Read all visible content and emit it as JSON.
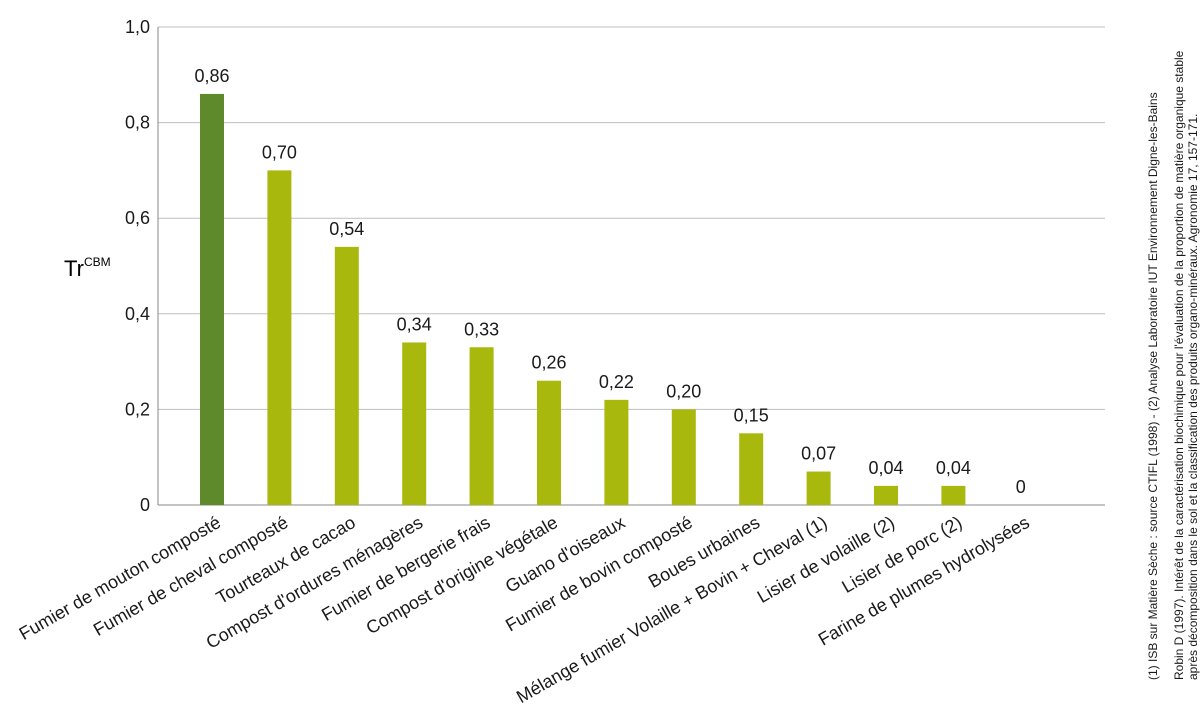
{
  "chart_data": {
    "type": "bar",
    "ylabel_main": "Tr",
    "ylabel_sup": "CBM",
    "ylim": [
      0,
      1.0
    ],
    "yticks": [
      "0",
      "0,2",
      "0,4",
      "0,6",
      "0,8",
      "1,0"
    ],
    "grid": true,
    "categories": [
      "Fumier de mouton composté",
      "Fumier de cheval composté",
      "Tourteaux de cacao",
      "Compost d'ordures ménagères",
      "Fumier de bergerie frais",
      "Compost d'origine végétale",
      "Guano d'oiseaux",
      "Fumier de bovin composté",
      "Boues urbaines",
      "Mélange fumier Volaille + Bovin + Cheval (1)",
      "Lisier de volaille (2)",
      "Lisier de porc (2)",
      "Farine de plumes hydrolysées"
    ],
    "values": [
      0.86,
      0.7,
      0.54,
      0.34,
      0.33,
      0.26,
      0.22,
      0.2,
      0.15,
      0.07,
      0.04,
      0.04,
      0
    ],
    "value_labels": [
      "0,86",
      "0,70",
      "0,54",
      "0,34",
      "0,33",
      "0,26",
      "0,22",
      "0,20",
      "0,15",
      "0,07",
      "0,04",
      "0,04",
      "0"
    ],
    "colors": {
      "highlight": "#5e8a2b",
      "default": "#a9b80c",
      "grid": "#bfbfbf",
      "axis": "#888888"
    }
  },
  "notes": [
    "(1) ISB sur Matière Sèche : source CTIFL (1998) - (2) Analyse Laboratoire IUT Environnement Digne-les-Bains",
    "Robin D (1997). Intérêt de la caractérisation biochimique pour l'évaluation de la proportion de matière organique stable",
    "après décomposition dans le sol et la classification des produits organo-minéraux. Agronomie 17, 157-171."
  ]
}
